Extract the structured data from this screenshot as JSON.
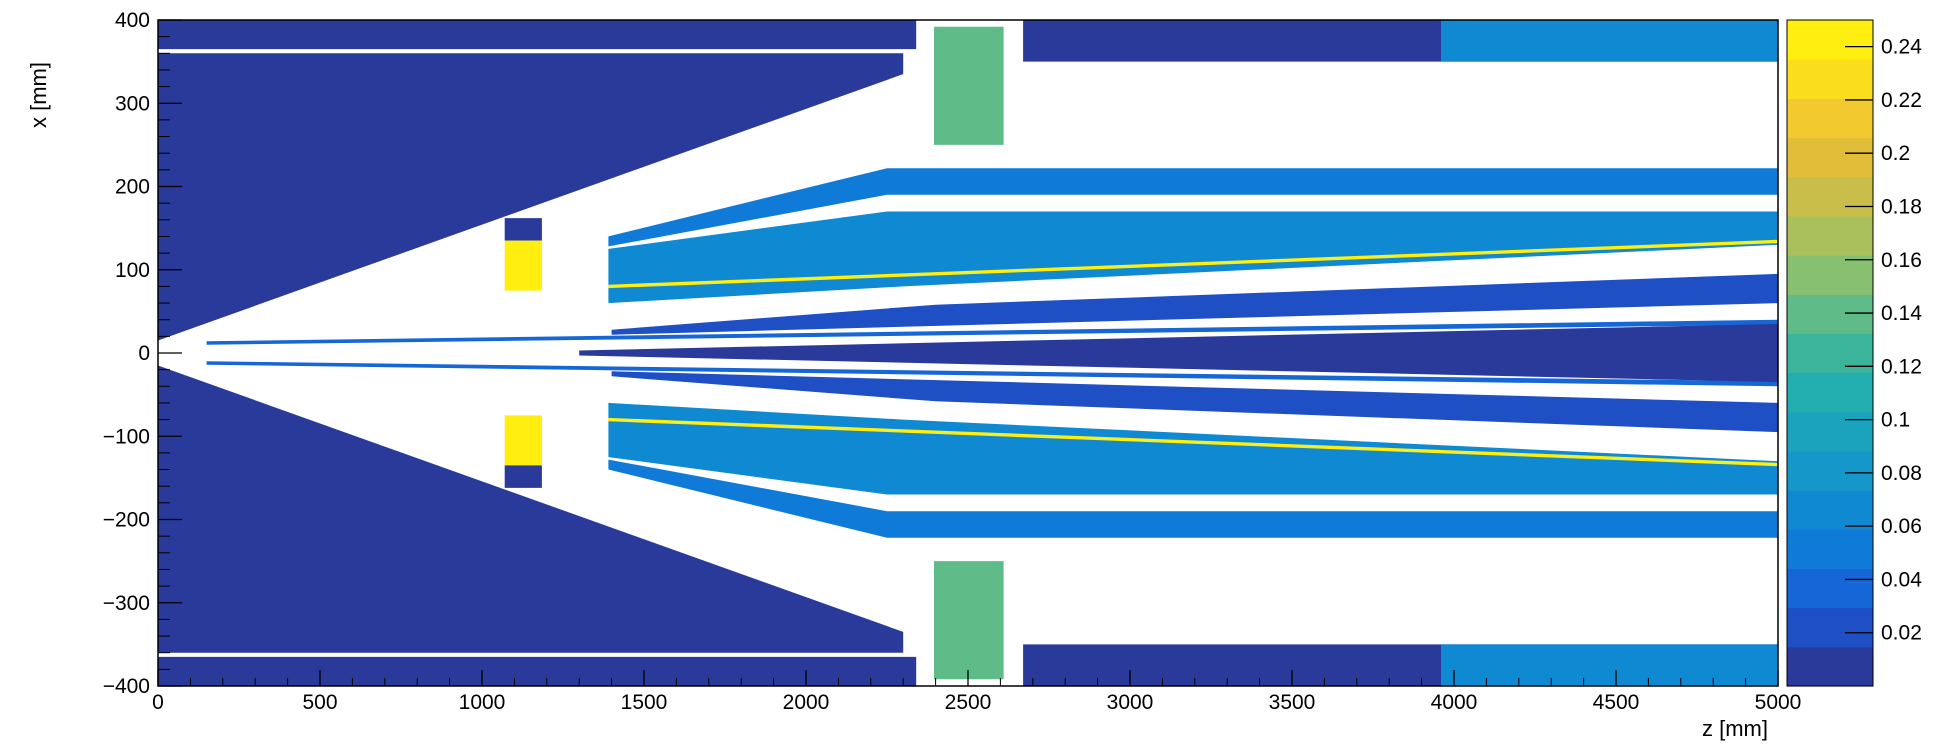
{
  "chart_data": {
    "type": "heatmap",
    "title": "",
    "xlabel": "z [mm]",
    "ylabel": "x [mm]",
    "xlim": [
      0,
      5000
    ],
    "ylim": [
      -400,
      400
    ],
    "x_ticks": [
      0,
      500,
      1000,
      1500,
      2000,
      2500,
      3000,
      3500,
      4000,
      4500,
      5000
    ],
    "x_tick_labels": [
      "0",
      "500",
      "1000",
      "1500",
      "2000",
      "2500",
      "3000",
      "3500",
      "4000",
      "4500",
      "5000"
    ],
    "y_ticks": [
      -400,
      -300,
      -200,
      -100,
      0,
      100,
      200,
      300,
      400
    ],
    "y_tick_labels": [
      "−400",
      "−300",
      "−200",
      "−100",
      "0",
      "100",
      "200",
      "300",
      "400"
    ],
    "colorbar": {
      "range": [
        0,
        0.25
      ],
      "ticks": [
        0.02,
        0.04,
        0.06,
        0.08,
        0.1,
        0.12,
        0.14,
        0.16,
        0.18,
        0.2,
        0.22,
        0.24
      ],
      "tick_labels": [
        "0.02",
        "0.04",
        "0.06",
        "0.08",
        "0.1",
        "0.12",
        "0.14",
        "0.16",
        "0.18",
        "0.2",
        "0.22",
        "0.24"
      ],
      "palette": [
        "#2a3a9a",
        "#1f4fc4",
        "#1566d6",
        "#0f7ad8",
        "#0f8ad2",
        "#1597c9",
        "#1ba3be",
        "#22adae",
        "#3ab59b",
        "#5fbb87",
        "#86c070",
        "#a9c05c",
        "#c9be4a",
        "#e2bd3a",
        "#f2c92e",
        "#fade1e",
        "#ffee10"
      ]
    },
    "regions": [
      {
        "name": "outer-yoke-upper",
        "value": 0.0,
        "polygon": [
          [
            0,
            400
          ],
          [
            2340,
            400
          ],
          [
            2340,
            365
          ],
          [
            0,
            365
          ]
        ]
      },
      {
        "name": "cone-upper",
        "value": 0.0,
        "polygon": [
          [
            0,
            360
          ],
          [
            2300,
            360
          ],
          [
            2300,
            335
          ],
          [
            0,
            15
          ]
        ]
      },
      {
        "name": "cone-lower",
        "value": 0.0,
        "polygon": [
          [
            0,
            -360
          ],
          [
            2300,
            -360
          ],
          [
            2300,
            -335
          ],
          [
            0,
            -15
          ]
        ]
      },
      {
        "name": "outer-yoke-lower",
        "value": 0.0,
        "polygon": [
          [
            0,
            -400
          ],
          [
            2340,
            -400
          ],
          [
            2340,
            -365
          ],
          [
            0,
            -365
          ]
        ]
      },
      {
        "name": "beam-pipe-upper",
        "value": 0.03,
        "polygon": [
          [
            150,
            14
          ],
          [
            5000,
            40
          ],
          [
            5000,
            34
          ],
          [
            150,
            10
          ]
        ]
      },
      {
        "name": "beam-pipe-lower",
        "value": 0.03,
        "polygon": [
          [
            150,
            -14
          ],
          [
            5000,
            -40
          ],
          [
            5000,
            -34
          ],
          [
            150,
            -10
          ]
        ]
      },
      {
        "name": "detector-block-upper",
        "value": 0.0,
        "polygon": [
          [
            1070,
            162
          ],
          [
            1185,
            162
          ],
          [
            1185,
            135
          ],
          [
            1070,
            135
          ]
        ]
      },
      {
        "name": "detector-block-upper-yellow",
        "value": 0.24,
        "polygon": [
          [
            1070,
            135
          ],
          [
            1185,
            135
          ],
          [
            1185,
            75
          ],
          [
            1070,
            75
          ]
        ]
      },
      {
        "name": "detector-block-lower-yellow",
        "value": 0.24,
        "polygon": [
          [
            1070,
            -75
          ],
          [
            1185,
            -75
          ],
          [
            1185,
            -135
          ],
          [
            1070,
            -135
          ]
        ]
      },
      {
        "name": "detector-block-lower",
        "value": 0.0,
        "polygon": [
          [
            1070,
            -135
          ],
          [
            1185,
            -135
          ],
          [
            1185,
            -162
          ],
          [
            1070,
            -162
          ]
        ]
      },
      {
        "name": "tracker-mid-upper",
        "value": 0.07,
        "polygon": [
          [
            1390,
            60
          ],
          [
            2300,
            80
          ],
          [
            5000,
            130
          ],
          [
            5000,
            170
          ],
          [
            2250,
            170
          ],
          [
            1390,
            125
          ]
        ]
      },
      {
        "name": "tracker-mid-lower",
        "value": 0.07,
        "polygon": [
          [
            1390,
            -60
          ],
          [
            2300,
            -80
          ],
          [
            5000,
            -130
          ],
          [
            5000,
            -170
          ],
          [
            2250,
            -170
          ],
          [
            1390,
            -125
          ]
        ]
      },
      {
        "name": "tracker-outer-upper",
        "value": 0.05,
        "polygon": [
          [
            1390,
            140
          ],
          [
            2250,
            222
          ],
          [
            5000,
            222
          ],
          [
            5000,
            190
          ],
          [
            2250,
            190
          ],
          [
            1390,
            128
          ]
        ]
      },
      {
        "name": "tracker-outer-lower",
        "value": 0.05,
        "polygon": [
          [
            1390,
            -140
          ],
          [
            2250,
            -222
          ],
          [
            5000,
            -222
          ],
          [
            5000,
            -190
          ],
          [
            2250,
            -190
          ],
          [
            1390,
            -128
          ]
        ]
      },
      {
        "name": "yellow-line-upper",
        "value": 0.24,
        "polygon": [
          [
            1390,
            82
          ],
          [
            5000,
            136
          ],
          [
            5000,
            132
          ],
          [
            1390,
            78
          ]
        ]
      },
      {
        "name": "yellow-line-lower",
        "value": 0.24,
        "polygon": [
          [
            1390,
            -82
          ],
          [
            5000,
            -136
          ],
          [
            5000,
            -132
          ],
          [
            1390,
            -78
          ]
        ]
      },
      {
        "name": "inner-layer-upper",
        "value": 0.02,
        "polygon": [
          [
            1400,
            22
          ],
          [
            5000,
            60
          ],
          [
            5000,
            95
          ],
          [
            2400,
            58
          ],
          [
            1400,
            28
          ]
        ]
      },
      {
        "name": "inner-layer-lower",
        "value": 0.02,
        "polygon": [
          [
            1400,
            -22
          ],
          [
            5000,
            -60
          ],
          [
            5000,
            -95
          ],
          [
            2400,
            -58
          ],
          [
            1400,
            -28
          ]
        ]
      },
      {
        "name": "core-wedge",
        "value": 0.01,
        "polygon": [
          [
            1300,
            3
          ],
          [
            5000,
            35
          ],
          [
            5000,
            -35
          ],
          [
            1300,
            -3
          ]
        ]
      },
      {
        "name": "calorimeter-upper",
        "value": 0.14,
        "polygon": [
          [
            2395,
            392
          ],
          [
            2610,
            392
          ],
          [
            2610,
            250
          ],
          [
            2395,
            250
          ]
        ]
      },
      {
        "name": "calorimeter-lower",
        "value": 0.14,
        "polygon": [
          [
            2395,
            -250
          ],
          [
            2610,
            -250
          ],
          [
            2610,
            -392
          ],
          [
            2395,
            -392
          ]
        ]
      },
      {
        "name": "rear-block-upper",
        "value": 0.0,
        "polygon": [
          [
            2670,
            400
          ],
          [
            5000,
            400
          ],
          [
            5000,
            350
          ],
          [
            2670,
            350
          ]
        ]
      },
      {
        "name": "rear-block-lower",
        "value": 0.0,
        "polygon": [
          [
            2670,
            -400
          ],
          [
            5000,
            -400
          ],
          [
            5000,
            -350
          ],
          [
            2670,
            -350
          ]
        ]
      },
      {
        "name": "rear-segments-upper",
        "value": 0.06,
        "polygon": [
          [
            3960,
            400
          ],
          [
            5000,
            400
          ],
          [
            5000,
            350
          ],
          [
            3960,
            350
          ]
        ]
      },
      {
        "name": "rear-segments-lower",
        "value": 0.06,
        "polygon": [
          [
            3960,
            -350
          ],
          [
            5000,
            -350
          ],
          [
            5000,
            -400
          ],
          [
            3960,
            -400
          ]
        ]
      }
    ]
  }
}
